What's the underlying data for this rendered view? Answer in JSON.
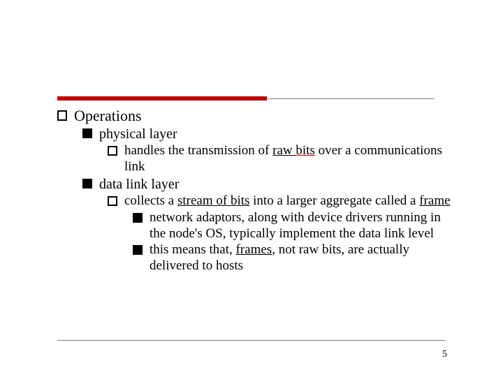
{
  "page_number": "5",
  "colors": {
    "accent_red": "#c00000",
    "rule_gray": "#808080",
    "text": "#000000",
    "background": "#ffffff"
  },
  "typography": {
    "family": "Times New Roman",
    "base_size_pt": 19,
    "l0_size_pt": 22,
    "l1_size_pt": 20
  },
  "items": {
    "l0": "Operations",
    "l1a": "physical layer",
    "l2a_pre": "handles the transmission of ",
    "l2a_u1": "raw ",
    "l2a_u2": "bits",
    "l2a_post": " over a communications link",
    "l1b": "data link layer",
    "l2b_pre": "collects a ",
    "l2b_u1": "stream of bits",
    "l2b_mid": " into a larger aggregate called a ",
    "l2b_u2": "frame",
    "l3a": "network adaptors, along with device drivers running in the node's OS, typically implement the data link level",
    "l3b_pre": "this means that, ",
    "l3b_u": "frames",
    "l3b_post": ", not raw bits, are actually delivered to hosts"
  }
}
